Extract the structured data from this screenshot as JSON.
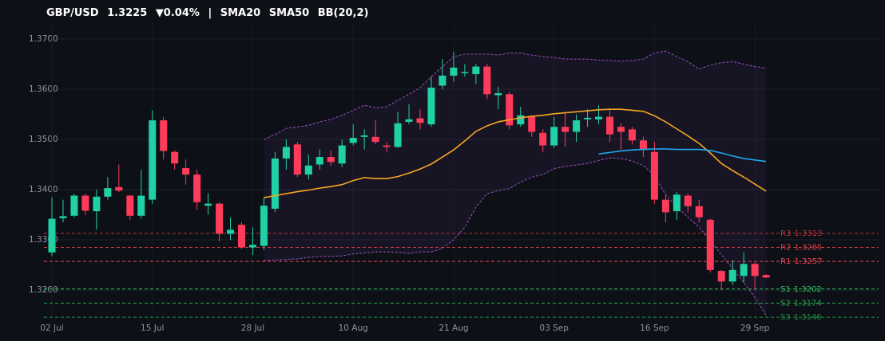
{
  "chart_data": {
    "type": "candlestick",
    "title": {
      "symbol": "GBP/USD",
      "last": 1.3225,
      "change": {
        "value": -0.04,
        "label": "▼0.04%"
      },
      "separator": "|"
    },
    "categories": [
      "02 Jul",
      null,
      null,
      null,
      null,
      null,
      null,
      null,
      null,
      "15 Jul",
      null,
      null,
      null,
      null,
      null,
      null,
      null,
      null,
      "28 Jul",
      null,
      null,
      null,
      null,
      null,
      null,
      null,
      null,
      "10 Aug",
      null,
      null,
      null,
      null,
      null,
      null,
      null,
      null,
      "21 Aug",
      null,
      null,
      null,
      null,
      null,
      null,
      null,
      null,
      "03 Sep",
      null,
      null,
      null,
      null,
      null,
      null,
      null,
      null,
      "16 Sep",
      null,
      null,
      null,
      null,
      null,
      null,
      null,
      null,
      "29 Sep",
      null
    ],
    "open": [
      1.3275,
      1.3343,
      1.3348,
      1.3388,
      1.3357,
      1.3386,
      1.3405,
      1.3388,
      1.3348,
      1.338,
      1.3538,
      1.3475,
      1.3443,
      1.343,
      1.3368,
      1.3372,
      1.3312,
      1.333,
      1.3285,
      1.3288,
      1.3362,
      1.3462,
      1.349,
      1.343,
      1.345,
      1.3465,
      1.3452,
      1.3493,
      1.3505,
      1.3505,
      1.3488,
      1.3485,
      1.3535,
      1.3542,
      1.353,
      1.3607,
      1.3627,
      1.3632,
      1.363,
      1.3645,
      1.3588,
      1.359,
      1.353,
      1.3545,
      1.3513,
      1.3488,
      1.3525,
      1.3515,
      1.354,
      1.354,
      1.3545,
      1.3525,
      1.352,
      1.3498,
      1.3475,
      1.338,
      1.3357,
      1.3388,
      1.3367,
      1.334,
      1.3238,
      1.3217,
      1.3228,
      1.3252,
      1.323
    ],
    "high": [
      1.3385,
      1.338,
      1.3392,
      1.3392,
      1.34,
      1.3425,
      1.345,
      1.339,
      1.344,
      1.3558,
      1.3545,
      1.3478,
      1.346,
      1.344,
      1.3393,
      1.3375,
      1.3345,
      1.3335,
      1.3325,
      1.3385,
      1.3475,
      1.35,
      1.3495,
      1.347,
      1.348,
      1.3478,
      1.35,
      1.353,
      1.352,
      1.3538,
      1.3495,
      1.3555,
      1.357,
      1.356,
      1.3625,
      1.366,
      1.3675,
      1.365,
      1.365,
      1.365,
      1.3605,
      1.3595,
      1.3565,
      1.3548,
      1.352,
      1.3545,
      1.3555,
      1.355,
      1.356,
      1.3568,
      1.3558,
      1.3532,
      1.3525,
      1.3505,
      1.3495,
      1.339,
      1.3395,
      1.3392,
      1.338,
      1.3342,
      1.324,
      1.326,
      1.3275,
      1.3255,
      1.3232
    ],
    "low": [
      1.3268,
      1.3335,
      1.3345,
      1.335,
      1.332,
      1.338,
      1.3395,
      1.334,
      1.3342,
      1.3372,
      1.346,
      1.344,
      1.341,
      1.336,
      1.335,
      1.3297,
      1.33,
      1.3282,
      1.327,
      1.328,
      1.3355,
      1.344,
      1.3425,
      1.342,
      1.344,
      1.3448,
      1.3445,
      1.3488,
      1.348,
      1.349,
      1.3475,
      1.3483,
      1.353,
      1.352,
      1.3525,
      1.36,
      1.3615,
      1.3625,
      1.361,
      1.358,
      1.356,
      1.352,
      1.3525,
      1.3505,
      1.3475,
      1.3483,
      1.3485,
      1.3495,
      1.3525,
      1.353,
      1.3495,
      1.348,
      1.349,
      1.3465,
      1.3372,
      1.3335,
      1.334,
      1.3355,
      1.3335,
      1.3235,
      1.32,
      1.321,
      1.3215,
      1.32,
      1.3224
    ],
    "close": [
      1.3342,
      1.3347,
      1.3388,
      1.3358,
      1.3386,
      1.3403,
      1.3398,
      1.3348,
      1.3388,
      1.3538,
      1.3477,
      1.3452,
      1.343,
      1.3375,
      1.3372,
      1.3312,
      1.332,
      1.3285,
      1.329,
      1.3368,
      1.3462,
      1.3485,
      1.343,
      1.3448,
      1.3465,
      1.3455,
      1.3488,
      1.3503,
      1.3508,
      1.3495,
      1.3485,
      1.3532,
      1.354,
      1.3533,
      1.3603,
      1.3627,
      1.3643,
      1.3634,
      1.3645,
      1.359,
      1.3592,
      1.3528,
      1.3548,
      1.3515,
      1.3488,
      1.3525,
      1.3515,
      1.3538,
      1.3543,
      1.3545,
      1.351,
      1.3515,
      1.3498,
      1.348,
      1.338,
      1.3355,
      1.339,
      1.3367,
      1.3345,
      1.324,
      1.3217,
      1.324,
      1.3252,
      1.3228,
      1.3225
    ],
    "up_color": "#1fd1a5",
    "down_color": "#ff3b5c",
    "overlays": [
      {
        "name": "SMA20",
        "color": "#f5a623",
        "values": [
          null,
          null,
          null,
          null,
          null,
          null,
          null,
          null,
          null,
          null,
          null,
          null,
          null,
          null,
          null,
          null,
          null,
          null,
          null,
          1.3384,
          1.3388,
          1.3392,
          1.3396,
          1.3399,
          1.3403,
          1.3406,
          1.341,
          1.3418,
          1.3424,
          1.3422,
          1.3422,
          1.3426,
          1.3433,
          1.3441,
          1.3451,
          1.3465,
          1.3479,
          1.3497,
          1.3516,
          1.3527,
          1.3535,
          1.3539,
          1.3543,
          1.3546,
          1.3548,
          1.3551,
          1.3553,
          1.3555,
          1.3557,
          1.3559,
          1.356,
          1.356,
          1.3558,
          1.3556,
          1.3547,
          1.3535,
          1.3521,
          1.3507,
          1.3492,
          1.3473,
          1.3452,
          1.3438,
          1.3425,
          1.3411,
          1.3397
        ]
      },
      {
        "name": "SMA50",
        "color": "#1ea7f0",
        "values": [
          null,
          null,
          null,
          null,
          null,
          null,
          null,
          null,
          null,
          null,
          null,
          null,
          null,
          null,
          null,
          null,
          null,
          null,
          null,
          null,
          null,
          null,
          null,
          null,
          null,
          null,
          null,
          null,
          null,
          null,
          null,
          null,
          null,
          null,
          null,
          null,
          null,
          null,
          null,
          null,
          null,
          null,
          null,
          null,
          null,
          null,
          null,
          null,
          null,
          1.3471,
          1.3474,
          1.3477,
          1.3479,
          1.348,
          1.3481,
          1.3481,
          1.348,
          1.348,
          1.348,
          1.3478,
          1.3473,
          1.3467,
          1.3462,
          1.3459,
          1.3456
        ]
      },
      {
        "name": "BB(20,2)",
        "color": "#9b4fc0",
        "upper": [
          null,
          null,
          null,
          null,
          null,
          null,
          null,
          null,
          null,
          null,
          null,
          null,
          null,
          null,
          null,
          null,
          null,
          null,
          null,
          1.35,
          1.351,
          1.3522,
          1.3525,
          1.3528,
          1.3535,
          1.354,
          1.3548,
          1.3558,
          1.3568,
          1.3563,
          1.3565,
          1.3578,
          1.359,
          1.3603,
          1.3625,
          1.3645,
          1.3665,
          1.367,
          1.367,
          1.367,
          1.3668,
          1.3672,
          1.3672,
          1.3668,
          1.3665,
          1.3663,
          1.366,
          1.366,
          1.366,
          1.3658,
          1.3657,
          1.3656,
          1.3657,
          1.366,
          1.3672,
          1.3676,
          1.3665,
          1.3655,
          1.364,
          1.3648,
          1.3653,
          1.3655,
          1.365,
          1.3645,
          1.3642
        ],
        "lower": [
          null,
          null,
          null,
          null,
          null,
          null,
          null,
          null,
          null,
          null,
          null,
          null,
          null,
          null,
          null,
          null,
          null,
          null,
          null,
          1.3259,
          1.326,
          1.3261,
          1.3262,
          1.3265,
          1.3267,
          1.3267,
          1.3268,
          1.3272,
          1.3274,
          1.3276,
          1.3276,
          1.3275,
          1.3273,
          1.3276,
          1.3276,
          1.3283,
          1.33,
          1.3325,
          1.3365,
          1.3392,
          1.3398,
          1.3402,
          1.3415,
          1.3425,
          1.343,
          1.3442,
          1.3446,
          1.3449,
          1.3452,
          1.3458,
          1.3463,
          1.3462,
          1.3457,
          1.3448,
          1.3428,
          1.339,
          1.3365,
          1.3345,
          1.3325,
          1.3298,
          1.327,
          1.3243,
          1.3215,
          1.3185,
          1.315
        ]
      }
    ],
    "levels": [
      {
        "name": "R3",
        "value": 1.3313,
        "color": "#b8323c"
      },
      {
        "name": "R2",
        "value": 1.3285,
        "color": "#d83a45"
      },
      {
        "name": "R1",
        "value": 1.3257,
        "color": "#f0444f"
      },
      {
        "name": "S1",
        "value": 1.3202,
        "color": "#2fc25a"
      },
      {
        "name": "S2",
        "value": 1.3174,
        "color": "#27a84d"
      },
      {
        "name": "S3",
        "value": 1.3146,
        "color": "#1f8e41"
      }
    ],
    "ylim": [
      1.3143,
      1.373
    ],
    "yticks": [
      {
        "value": 1.32,
        "label": "1.3200"
      },
      {
        "value": 1.33,
        "label": "1.3300"
      },
      {
        "value": 1.34,
        "label": "1.3400"
      },
      {
        "value": 1.35,
        "label": "1.3500"
      },
      {
        "value": 1.36,
        "label": "1.3600"
      },
      {
        "value": 1.37,
        "label": "1.3700"
      }
    ],
    "grid": true
  }
}
